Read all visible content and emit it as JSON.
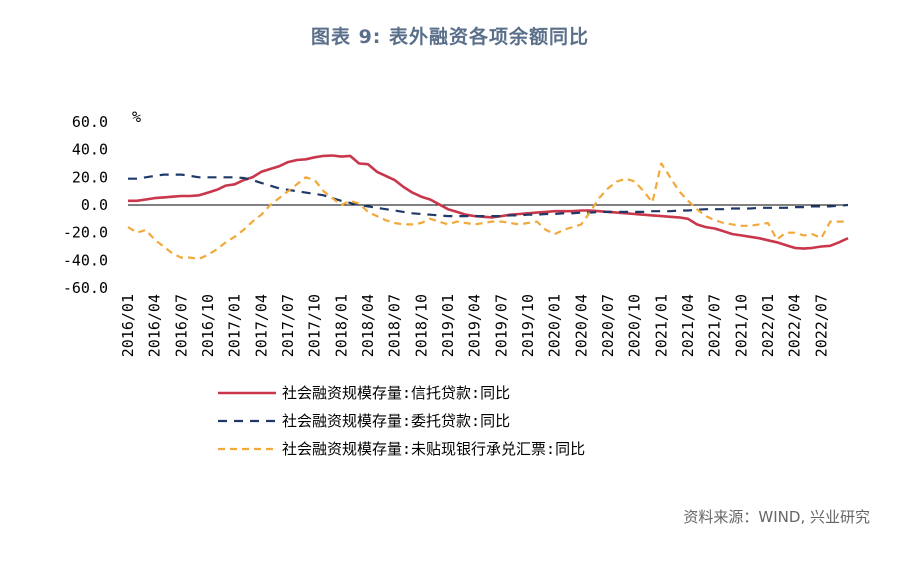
{
  "title": "图表 9: 表外融资各项余额同比",
  "source": "资料来源：WIND, 兴业研究",
  "chart_data": {
    "type": "line",
    "title": "图表 9: 表外融资各项余额同比",
    "xlabel": "",
    "ylabel": "%",
    "ylim": [
      -60,
      60
    ],
    "yticks": [
      "60.0",
      "40.0",
      "20.0",
      "0.0",
      "-20.0",
      "-40.0",
      "-60.0"
    ],
    "xtick_labels": [
      "2016/01",
      "2016/04",
      "2016/07",
      "2016/10",
      "2017/01",
      "2017/04",
      "2017/07",
      "2017/10",
      "2018/01",
      "2018/04",
      "2018/07",
      "2018/10",
      "2019/01",
      "2019/04",
      "2019/07",
      "2019/10",
      "2020/01",
      "2020/04",
      "2020/07",
      "2020/10",
      "2021/01",
      "2021/04",
      "2021/07",
      "2021/10",
      "2022/01",
      "2022/04",
      "2022/07"
    ],
    "start": "2016/01",
    "n_points": 82,
    "series": [
      {
        "name": "社会融资规模存量:信托贷款:同比",
        "color": "#c8374b",
        "dash": "solid",
        "values": [
          3,
          3,
          4,
          5,
          5.5,
          6,
          6.5,
          6.5,
          7,
          9,
          11,
          14,
          15,
          18,
          20,
          24,
          26,
          28,
          31,
          32.5,
          33,
          34.5,
          35.5,
          35.8,
          35,
          35.5,
          30,
          29.5,
          24,
          21,
          18,
          13,
          9,
          6,
          4,
          0.5,
          -3,
          -5,
          -7,
          -8,
          -8.5,
          -9,
          -8,
          -7,
          -6.5,
          -6,
          -5.5,
          -5,
          -4.5,
          -4.5,
          -4.5,
          -4,
          -4,
          -4.5,
          -5,
          -5.5,
          -6,
          -6.5,
          -7,
          -7.5,
          -8,
          -8.5,
          -9,
          -10,
          -14,
          -16,
          -17,
          -19,
          -21,
          -22,
          -23,
          -24,
          -25.5,
          -27,
          -29,
          -31,
          -31.5,
          -31,
          -30,
          -29.5,
          -27,
          -24
        ]
      },
      {
        "name": "社会融资规模存量:委托贷款:同比",
        "color": "#1f3a68",
        "dash": "dashed",
        "values": [
          19,
          19,
          20,
          21,
          22,
          22,
          22,
          21,
          20,
          20,
          20,
          20,
          20,
          19.5,
          18,
          16,
          14,
          12,
          11,
          10,
          9,
          8,
          7,
          5,
          3,
          1.5,
          0,
          -1,
          -2,
          -3,
          -4,
          -5,
          -6,
          -6.5,
          -7,
          -7.5,
          -8,
          -8,
          -8,
          -8,
          -8,
          -8,
          -8,
          -7.5,
          -7.5,
          -7,
          -7,
          -6.5,
          -6.5,
          -6,
          -6,
          -5.5,
          -5.5,
          -5,
          -5,
          -5,
          -5,
          -5,
          -5,
          -4.5,
          -4.5,
          -4.5,
          -4,
          -4,
          -3.5,
          -3,
          -3,
          -3,
          -2.5,
          -2.5,
          -2.5,
          -2,
          -2,
          -2,
          -2,
          -1.5,
          -1.5,
          -1,
          -1,
          -1,
          -0.5,
          0
        ]
      },
      {
        "name": "社会融资规模存量:未贴现银行承兑汇票:同比",
        "color": "#f2a93b",
        "dash": "dashed",
        "values": [
          -16,
          -20,
          -18,
          -25,
          -30,
          -35,
          -38,
          -38,
          -39,
          -36,
          -32,
          -27,
          -23,
          -18,
          -12,
          -7,
          0,
          5,
          10,
          15,
          20,
          18,
          10,
          5,
          0,
          3,
          1,
          -5,
          -8,
          -11,
          -13,
          -14,
          -14,
          -13,
          -10,
          -12,
          -14,
          -12,
          -13,
          -14,
          -13,
          -12,
          -12,
          -13,
          -14,
          -13,
          -12,
          -18,
          -21,
          -18,
          -16,
          -14,
          -5,
          5,
          12,
          17,
          19,
          17,
          10,
          2,
          30,
          20,
          10,
          3,
          -3,
          -8,
          -11,
          -13,
          -14,
          -15,
          -15,
          -14,
          -13,
          -25,
          -20,
          -20,
          -22,
          -21,
          -24,
          -12,
          -12,
          -12
        ]
      }
    ]
  }
}
